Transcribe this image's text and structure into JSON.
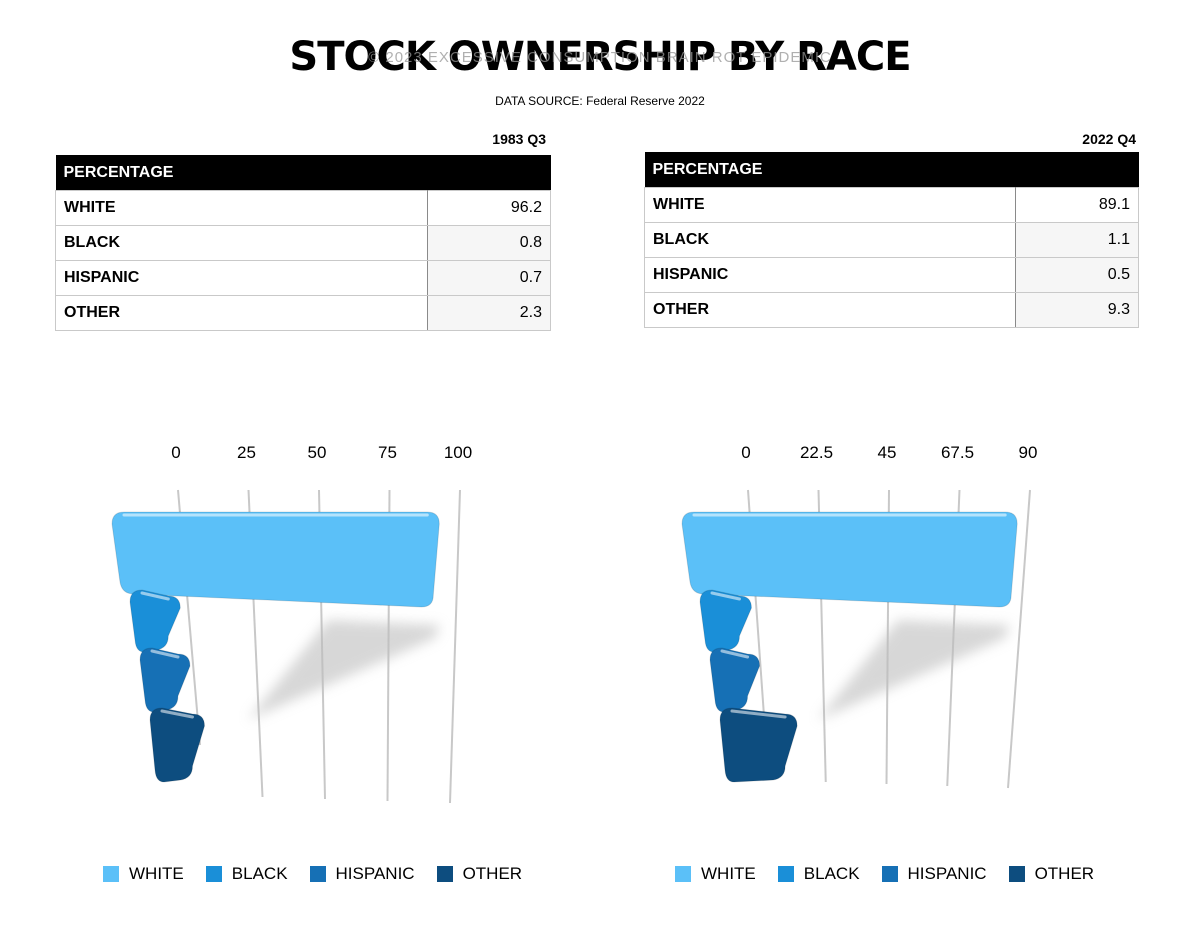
{
  "header": {
    "title": "STOCK OWNERSHIP BY RACE",
    "watermark": "© 2023 EXCESSIVE CONSUMPTION BRAIN ROT EPIDEMIC",
    "source": "DATA SOURCE: Federal Reserve 2022"
  },
  "tables": [
    {
      "period": "1983 Q3",
      "header": "PERCENTAGE",
      "rows": [
        {
          "label": "WHITE",
          "value": "96.2"
        },
        {
          "label": "BLACK",
          "value": "0.8"
        },
        {
          "label": "HISPANIC",
          "value": "0.7"
        },
        {
          "label": "OTHER",
          "value": "2.3"
        }
      ]
    },
    {
      "period": "2022 Q4",
      "header": "PERCENTAGE",
      "rows": [
        {
          "label": "WHITE",
          "value": "89.1"
        },
        {
          "label": "BLACK",
          "value": "1.1"
        },
        {
          "label": "HISPANIC",
          "value": "0.5"
        },
        {
          "label": "OTHER",
          "value": "9.3"
        }
      ]
    }
  ],
  "chart_data": [
    {
      "type": "bar",
      "orientation": "horizontal",
      "categories": [
        "WHITE",
        "BLACK",
        "HISPANIC",
        "OTHER"
      ],
      "values": [
        96.2,
        0.8,
        0.7,
        2.3
      ],
      "ticks": [
        "0",
        "25",
        "50",
        "75",
        "100"
      ],
      "xlim": [
        0,
        100
      ],
      "colors": [
        "#5bc0f8",
        "#1a8fd8",
        "#1670b5",
        "#0d4d7f"
      ],
      "legend": [
        "WHITE",
        "BLACK",
        "HISPANIC",
        "OTHER"
      ],
      "legend_position": "bottom"
    },
    {
      "type": "bar",
      "orientation": "horizontal",
      "categories": [
        "WHITE",
        "BLACK",
        "HISPANIC",
        "OTHER"
      ],
      "values": [
        89.1,
        1.1,
        0.5,
        9.3
      ],
      "ticks": [
        "0",
        "22.5",
        "45",
        "67.5",
        "90"
      ],
      "xlim": [
        0,
        90
      ],
      "colors": [
        "#5bc0f8",
        "#1a8fd8",
        "#1670b5",
        "#0d4d7f"
      ],
      "legend": [
        "WHITE",
        "BLACK",
        "HISPANIC",
        "OTHER"
      ],
      "legend_position": "bottom"
    }
  ]
}
